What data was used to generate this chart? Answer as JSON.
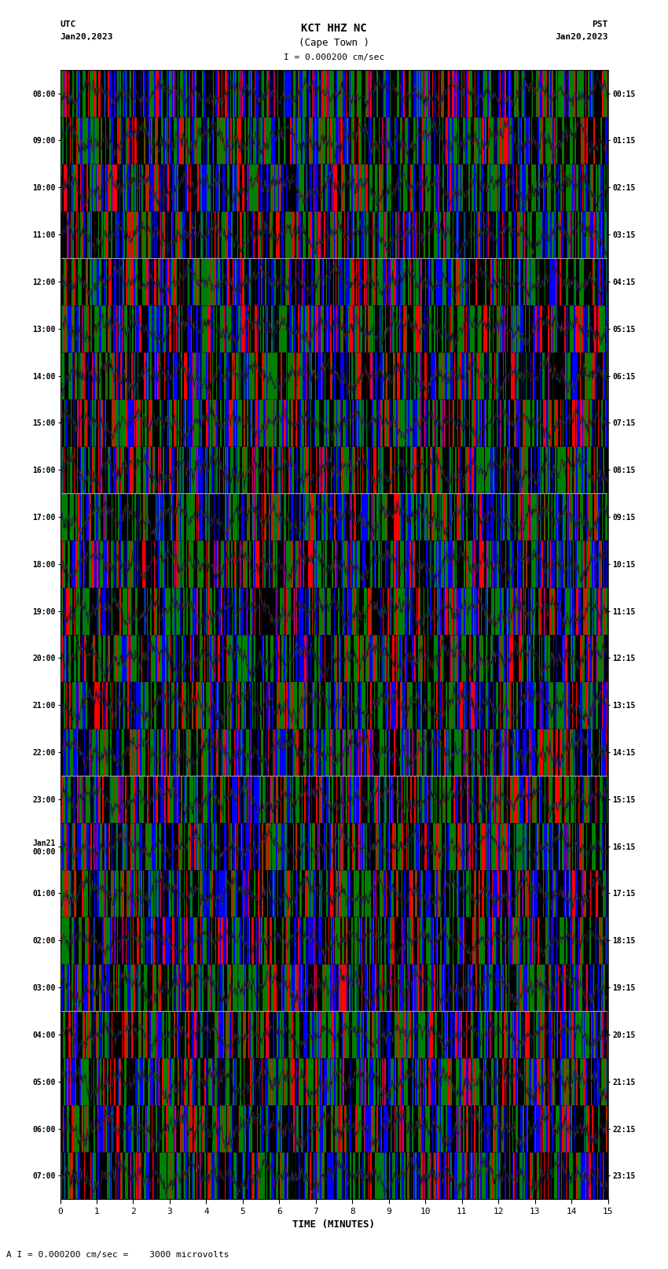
{
  "title_line1": "KCT HHZ NC",
  "title_line2": "(Cape Town )",
  "scale_text": "I = 0.000200 cm/sec",
  "bottom_label": "A I = 0.000200 cm/sec =    3000 microvolts",
  "xlabel": "TIME (MINUTES)",
  "left_label": "UTC",
  "left_date": "Jan20,2023",
  "right_label": "PST",
  "right_date": "Jan20,2023",
  "left_times": [
    "08:00",
    "09:00",
    "10:00",
    "11:00",
    "12:00",
    "13:00",
    "14:00",
    "15:00",
    "16:00",
    "17:00",
    "18:00",
    "19:00",
    "20:00",
    "21:00",
    "22:00",
    "23:00",
    "Jan21\n00:00",
    "01:00",
    "02:00",
    "03:00",
    "04:00",
    "05:00",
    "06:00",
    "07:00"
  ],
  "right_times": [
    "00:15",
    "01:15",
    "02:15",
    "03:15",
    "04:15",
    "05:15",
    "06:15",
    "07:15",
    "08:15",
    "09:15",
    "10:15",
    "11:15",
    "12:15",
    "13:15",
    "14:15",
    "15:15",
    "16:15",
    "17:15",
    "18:15",
    "19:15",
    "20:15",
    "21:15",
    "22:15",
    "23:15"
  ],
  "num_rows": 24,
  "minutes_per_row": 15,
  "bg_color": "#ffffff",
  "colors": [
    "#ff0000",
    "#0000ff",
    "#008000",
    "#000000"
  ],
  "fig_width": 8.5,
  "fig_height": 16.13,
  "dpi": 100
}
